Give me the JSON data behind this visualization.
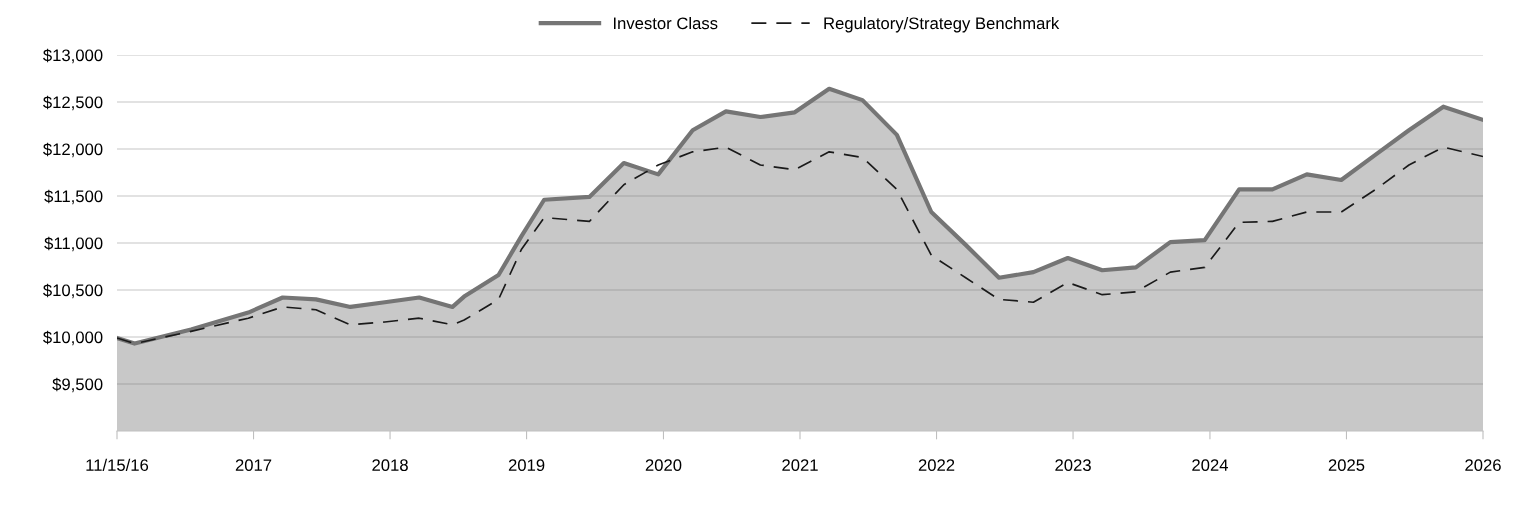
{
  "chart_data": {
    "type": "line",
    "legend": "top",
    "grid": "y",
    "xlim": [
      "2016-11-15",
      "2026-11-15"
    ],
    "ylim": [
      9000,
      13000
    ],
    "xticks": [
      {
        "value": "2016-11-15",
        "label": "11/15/16"
      },
      {
        "value": "2017-11-15",
        "label": "2017"
      },
      {
        "value": "2018-11-15",
        "label": "2018"
      },
      {
        "value": "2019-11-15",
        "label": "2019"
      },
      {
        "value": "2020-11-15",
        "label": "2020"
      },
      {
        "value": "2021-11-15",
        "label": "2021"
      },
      {
        "value": "2022-11-15",
        "label": "2022"
      },
      {
        "value": "2023-11-15",
        "label": "2023"
      },
      {
        "value": "2024-11-15",
        "label": "2024"
      },
      {
        "value": "2025-11-15",
        "label": "2025"
      },
      {
        "value": "2026-11-15",
        "label": "2026"
      }
    ],
    "yticks": [
      {
        "value": 9500,
        "label": "$9,500"
      },
      {
        "value": 10000,
        "label": "$10,000"
      },
      {
        "value": 10500,
        "label": "$10,500"
      },
      {
        "value": 11000,
        "label": "$11,000"
      },
      {
        "value": 11500,
        "label": "$11,500"
      },
      {
        "value": 12000,
        "label": "$12,000"
      },
      {
        "value": 12500,
        "label": "$12,500"
      },
      {
        "value": 13000,
        "label": "$13,000"
      }
    ],
    "x": [
      "2016-11-15",
      "2017-01",
      "2017-06",
      "2017-11",
      "2018-02",
      "2018-05",
      "2018-08",
      "2018-11",
      "2019-02",
      "2019-05",
      "2019-06",
      "2019-09",
      "2019-11",
      "2020-01",
      "2020-05",
      "2020-08",
      "2020-11",
      "2021-02",
      "2021-05",
      "2021-08",
      "2021-11",
      "2022-02",
      "2022-05",
      "2022-08",
      "2022-11",
      "2023-02",
      "2023-05",
      "2023-08",
      "2023-11",
      "2024-02",
      "2024-05",
      "2024-08",
      "2024-11",
      "2025-02",
      "2025-05",
      "2025-08",
      "2025-11",
      "2026-02",
      "2026-05",
      "2026-08",
      "2026-11-15"
    ],
    "series": [
      {
        "name": "Investor Class",
        "type": "area",
        "color": "#757575",
        "line_style": "solid",
        "values": [
          9990,
          9930,
          10080,
          10260,
          10420,
          10400,
          10320,
          10370,
          10420,
          10320,
          10430,
          10660,
          11070,
          11460,
          11490,
          11850,
          11730,
          12200,
          12400,
          12340,
          12390,
          12640,
          12520,
          12150,
          11330,
          10980,
          10630,
          10690,
          10840,
          10710,
          10740,
          11010,
          11030,
          11570,
          11570,
          11730,
          11670,
          11940,
          12200,
          12450,
          12310
        ]
      },
      {
        "name": "Regulatory/Strategy Benchmark",
        "color": "#1a1a1a",
        "line_style": "dashed",
        "values": [
          9990,
          9930,
          10060,
          10200,
          10320,
          10290,
          10130,
          10160,
          10200,
          10130,
          10180,
          10400,
          10930,
          11270,
          11230,
          11620,
          11830,
          11970,
          12020,
          11830,
          11780,
          11970,
          11910,
          11570,
          10870,
          10630,
          10400,
          10370,
          10580,
          10450,
          10480,
          10690,
          10740,
          11220,
          11230,
          11330,
          11330,
          11570,
          11830,
          12020,
          11920
        ]
      }
    ]
  }
}
